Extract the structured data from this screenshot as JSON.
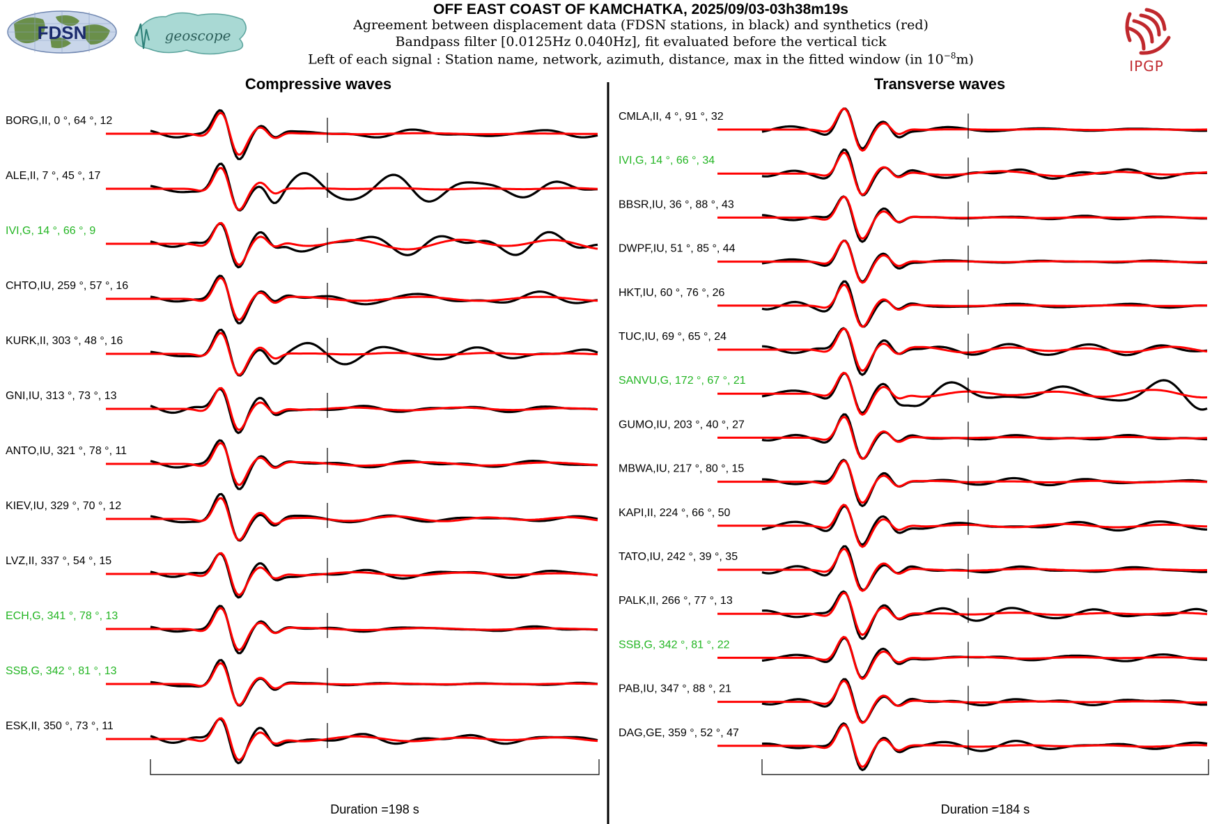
{
  "header": {
    "title": "OFF EAST COAST OF KAMCHATKA, 2025/09/03-03h38m19s",
    "subtitle_1": "Agreement between displacement data (FDSN stations, in black) and synthetics (red)",
    "subtitle_2": "Bandpass filter [0.0125Hz 0.040Hz], fit evaluated before the vertical tick",
    "subtitle_3_prefix": "Left of each signal : Station name, network, azimuth, distance, max in the fitted window (in 10",
    "subtitle_3_exp": "−8",
    "subtitle_3_suffix": "m)"
  },
  "logos": {
    "fdsn": "FDSN",
    "geoscope": "geoscope",
    "ipgp": "IPGP"
  },
  "colors": {
    "data": "#000000",
    "synthetic": "#ff0000",
    "label_default": "#000000",
    "label_highlight": "#22b522"
  },
  "chart_data": [
    {
      "type": "line",
      "title": "Compressive waves",
      "duration_label": "Duration =198 s",
      "duration_s": 198,
      "stations": [
        {
          "label": "BORG,II, 0 °, 64 °, 12",
          "highlight": false,
          "amp": 1.0,
          "post": 0.25,
          "sfit": 0.15
        },
        {
          "label": "ALE,II, 7 °, 45 °, 17",
          "highlight": false,
          "amp": 1.0,
          "post": 1.0,
          "sfit": 0.05
        },
        {
          "label": "IVI,G, 14 °, 66 °, 9",
          "highlight": true,
          "amp": 1.0,
          "post": 0.7,
          "sfit": 0.55
        },
        {
          "label": "CHTO,IU, 259 °, 57 °, 16",
          "highlight": false,
          "amp": 1.0,
          "post": 0.4,
          "sfit": 0.35
        },
        {
          "label": "KURK,II, 303 °, 48 °, 16",
          "highlight": false,
          "amp": 1.0,
          "post": 0.7,
          "sfit": 0.1
        },
        {
          "label": "GNI,IU, 313 °, 73 °, 13",
          "highlight": false,
          "amp": 1.0,
          "post": 0.2,
          "sfit": 0.5
        },
        {
          "label": "ANTO,IU, 321 °, 78 °, 11",
          "highlight": false,
          "amp": 1.0,
          "post": 0.2,
          "sfit": 0.6
        },
        {
          "label": "KIEV,IU, 329 °, 70 °, 12",
          "highlight": false,
          "amp": 1.0,
          "post": 0.3,
          "sfit": 0.6
        },
        {
          "label": "LVZ,II, 337 °, 54 °, 15",
          "highlight": false,
          "amp": 1.0,
          "post": 0.3,
          "sfit": 0.4
        },
        {
          "label": "ECH,G, 341 °, 78 °, 13",
          "highlight": true,
          "amp": 1.0,
          "post": 0.15,
          "sfit": 0.5
        },
        {
          "label": "SSB,G, 342 °, 81 °, 13",
          "highlight": true,
          "amp": 1.0,
          "post": 0.1,
          "sfit": 0.3
        },
        {
          "label": "ESK,II, 350 °, 73 °, 11",
          "highlight": false,
          "amp": 1.0,
          "post": 0.3,
          "sfit": 0.6
        }
      ]
    },
    {
      "type": "line",
      "title": "Transverse waves",
      "duration_label": "Duration =184 s",
      "duration_s": 184,
      "stations": [
        {
          "label": "CMLA,II, 4 °, 91 °, 32",
          "highlight": false,
          "amp": 1.0,
          "post": 0.15,
          "sfit": 0.2
        },
        {
          "label": "IVI,G, 14 °, 66 °, 34",
          "highlight": true,
          "amp": 1.0,
          "post": 0.3,
          "sfit": 0.6
        },
        {
          "label": "BBSR,IU, 36 °, 88 °, 43",
          "highlight": false,
          "amp": 1.0,
          "post": 0.1,
          "sfit": 0.3
        },
        {
          "label": "DWPF,IU, 51 °, 85 °, 44",
          "highlight": false,
          "amp": 1.0,
          "post": 0.1,
          "sfit": 0.3
        },
        {
          "label": "HKT,IU, 60 °, 76 °, 26",
          "highlight": false,
          "amp": 1.0,
          "post": 0.15,
          "sfit": 0.3
        },
        {
          "label": "TUC,IU, 69 °, 65 °, 24",
          "highlight": false,
          "amp": 1.0,
          "post": 0.4,
          "sfit": 0.5
        },
        {
          "label": "SANVU,G, 172 °, 67 °, 21",
          "highlight": true,
          "amp": 1.0,
          "post": 0.9,
          "sfit": 0.3
        },
        {
          "label": "GUMO,IU, 203 °, 40 °, 27",
          "highlight": false,
          "amp": 1.0,
          "post": 0.15,
          "sfit": 0.3
        },
        {
          "label": "MBWA,IU, 217 °, 80 °, 15",
          "highlight": false,
          "amp": 1.0,
          "post": 0.2,
          "sfit": 0.3
        },
        {
          "label": "KAPI,II, 224 °, 66 °, 50",
          "highlight": false,
          "amp": 1.0,
          "post": 0.3,
          "sfit": 0.4
        },
        {
          "label": "TATO,IU, 242 °, 39 °, 35",
          "highlight": false,
          "amp": 1.0,
          "post": 0.2,
          "sfit": 0.3
        },
        {
          "label": "PALK,II, 266 °, 77 °, 13",
          "highlight": false,
          "amp": 1.0,
          "post": 0.4,
          "sfit": 0.2
        },
        {
          "label": "SSB,G, 342 °, 81 °, 22",
          "highlight": true,
          "amp": 1.0,
          "post": 0.2,
          "sfit": 0.3
        },
        {
          "label": "PAB,IU, 347 °, 88 °, 21",
          "highlight": false,
          "amp": 1.0,
          "post": 0.2,
          "sfit": 0.3
        },
        {
          "label": "DAG,GE, 359 °, 52 °, 47",
          "highlight": false,
          "amp": 1.0,
          "post": 0.3,
          "sfit": 0.2
        }
      ]
    }
  ]
}
